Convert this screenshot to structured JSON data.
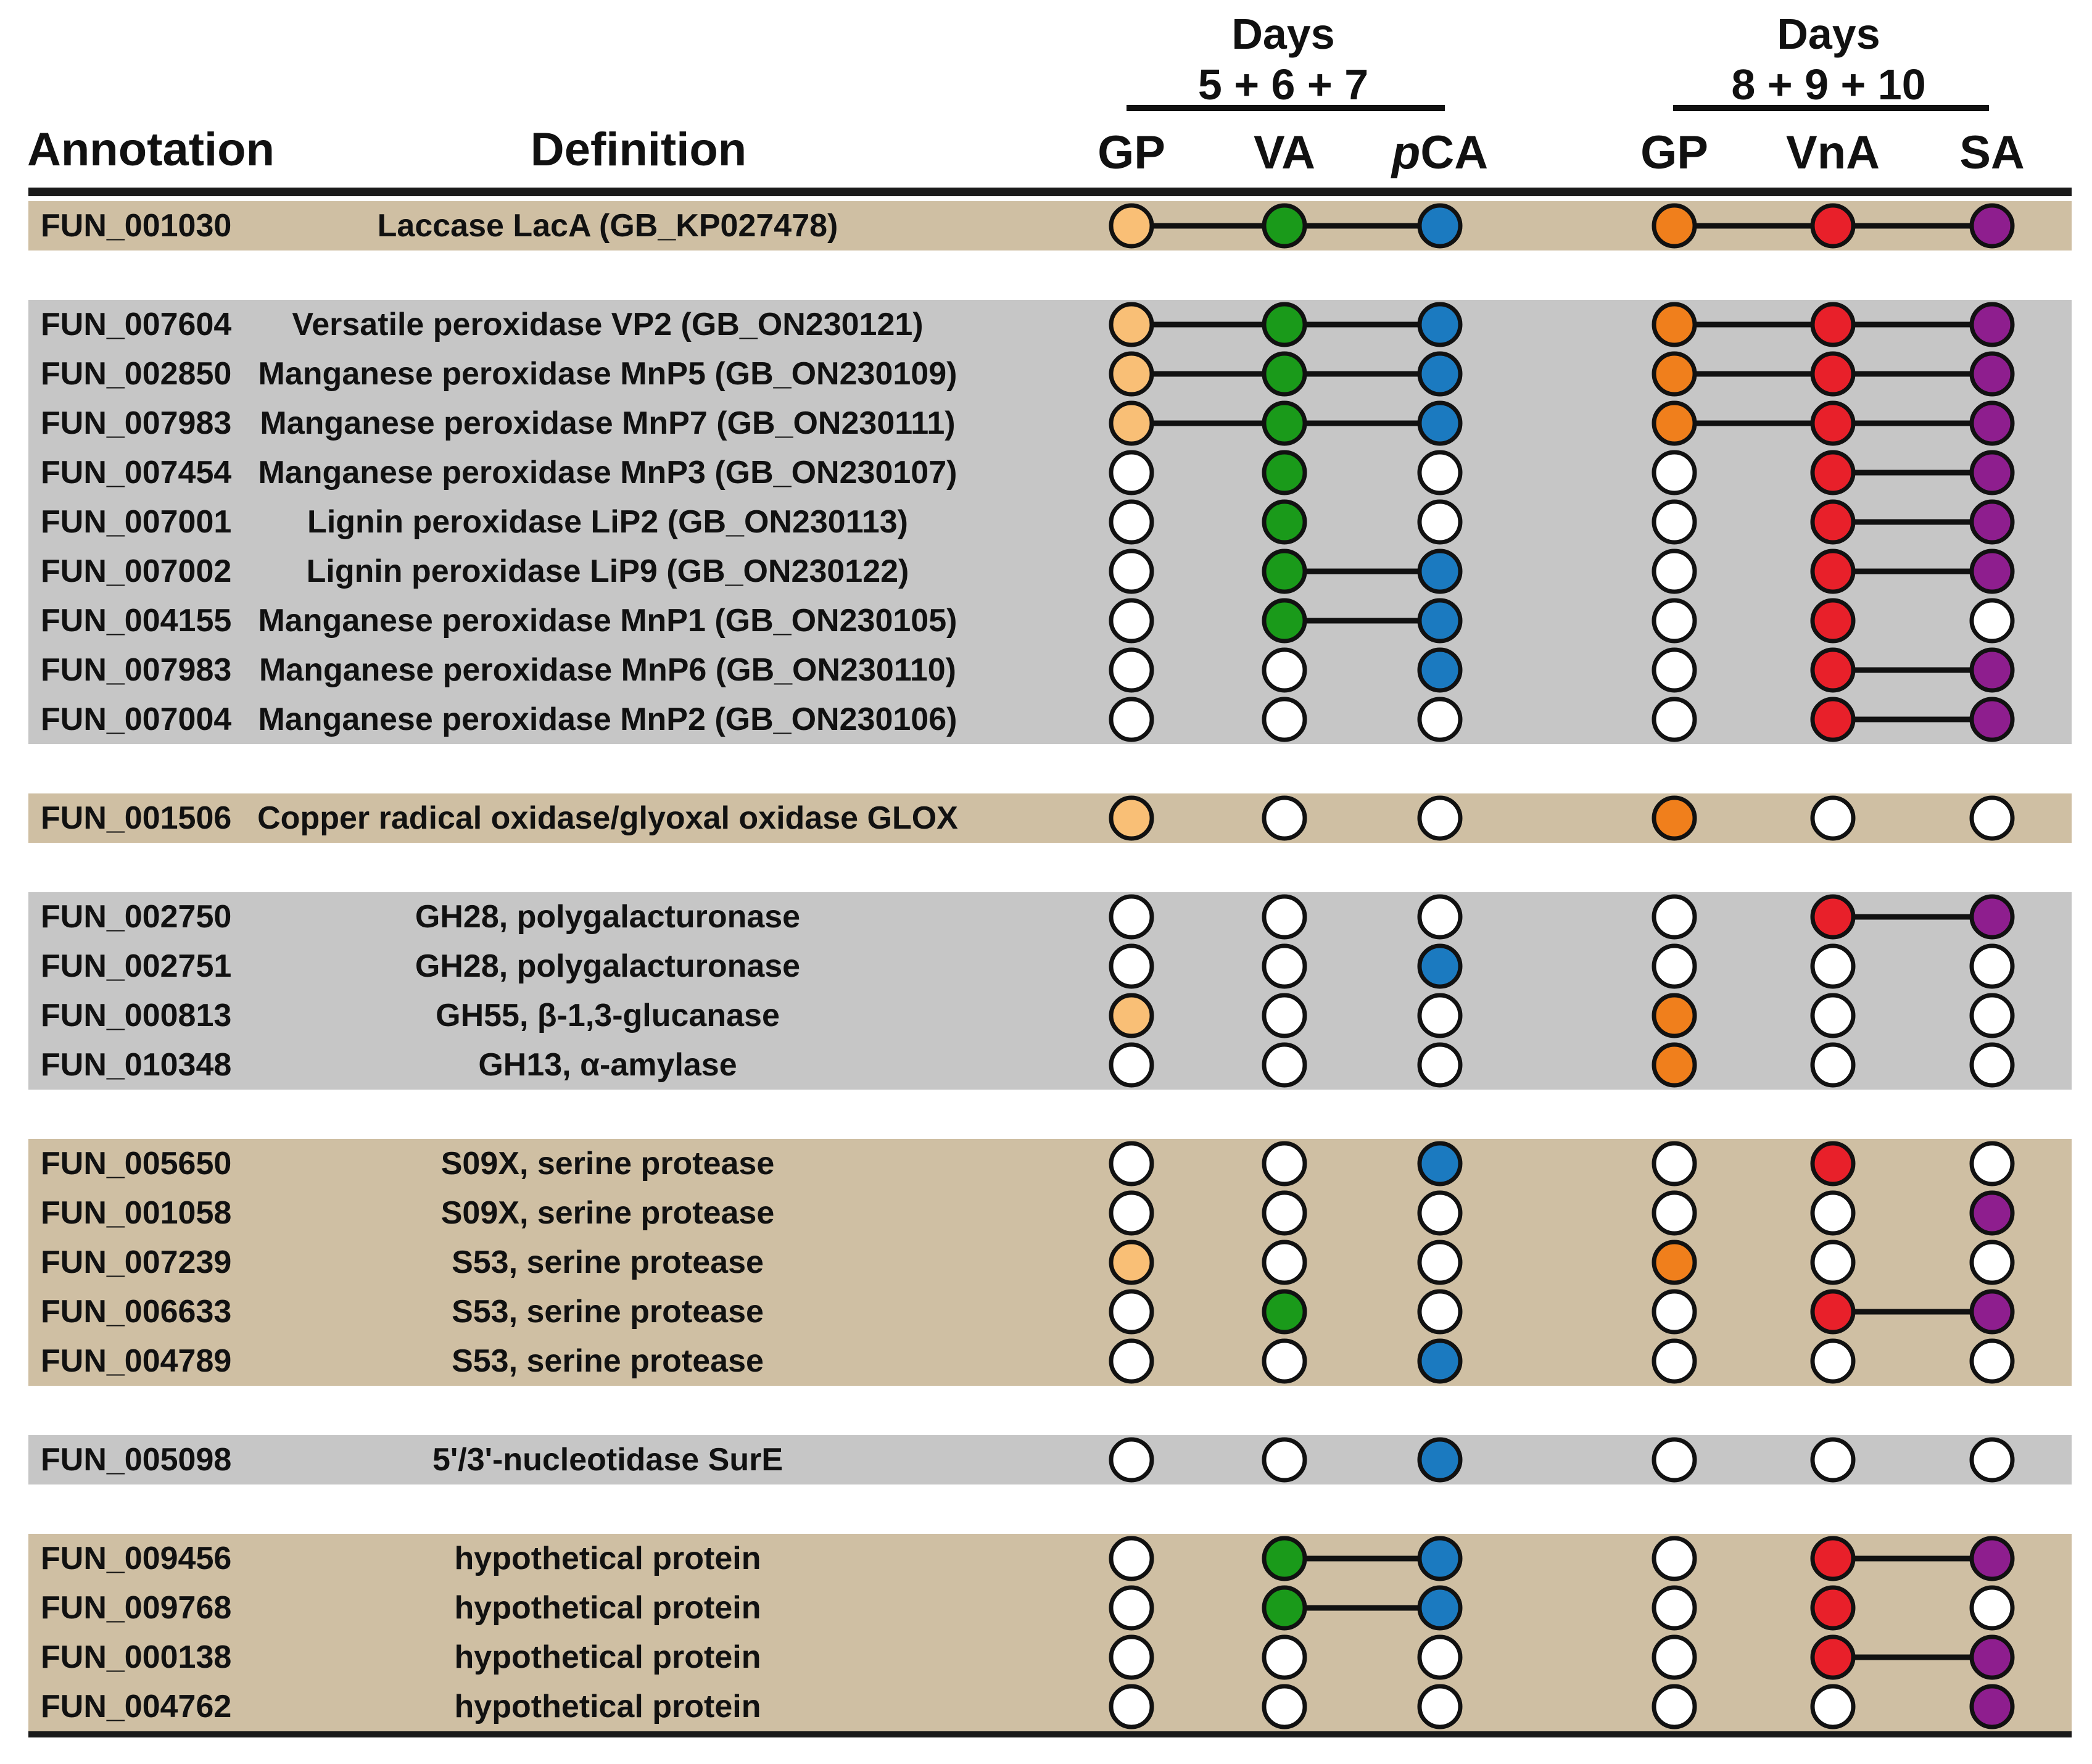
{
  "headers": {
    "annotation": "Annotation",
    "definition": "Definition",
    "group1_days": "Days",
    "group1_range": "5 + 6 + 7",
    "group2_days": "Days",
    "group2_range": "8 + 9 + 10"
  },
  "columns": [
    {
      "label": "GP",
      "italic_prefix": "",
      "group": 1
    },
    {
      "label": "VA",
      "italic_prefix": "",
      "group": 1
    },
    {
      "label": "CA",
      "italic_prefix": "p",
      "group": 1
    },
    {
      "label": "GP",
      "italic_prefix": "",
      "group": 2
    },
    {
      "label": "VnA",
      "italic_prefix": "",
      "group": 2
    },
    {
      "label": "SA",
      "italic_prefix": "",
      "group": 2
    }
  ],
  "colors": {
    "GP1": "#f9bf76",
    "VA": "#1a9a1a",
    "pCA": "#1b7ac0",
    "GP2": "#f07f1c",
    "VnA": "#e8202a",
    "SA": "#8e1e8e",
    "empty": "#ffffff",
    "band_tan": "#cfbfa3",
    "band_gray": "#c6c6c6"
  },
  "groups": [
    {
      "color": "tan",
      "rows": [
        {
          "annotation": "FUN_001030",
          "definition": "Laccase LacA (GB_KP027478)",
          "presence": [
            1,
            1,
            1,
            1,
            1,
            1
          ]
        }
      ]
    },
    {
      "color": "gray",
      "rows": [
        {
          "annotation": "FUN_007604",
          "definition": "Versatile peroxidase VP2 (GB_ON230121)",
          "presence": [
            1,
            1,
            1,
            1,
            1,
            1
          ]
        },
        {
          "annotation": "FUN_002850",
          "definition": "Manganese peroxidase MnP5 (GB_ON230109)",
          "presence": [
            1,
            1,
            1,
            1,
            1,
            1
          ]
        },
        {
          "annotation": "FUN_007983",
          "definition": "Manganese peroxidase MnP7 (GB_ON230111)",
          "presence": [
            1,
            1,
            1,
            1,
            1,
            1
          ]
        },
        {
          "annotation": "FUN_007454",
          "definition": "Manganese peroxidase MnP3 (GB_ON230107)",
          "presence": [
            0,
            1,
            0,
            0,
            1,
            1
          ]
        },
        {
          "annotation": "FUN_007001",
          "definition": "Lignin peroxidase LiP2 (GB_ON230113)",
          "presence": [
            0,
            1,
            0,
            0,
            1,
            1
          ]
        },
        {
          "annotation": "FUN_007002",
          "definition": "Lignin peroxidase LiP9 (GB_ON230122)",
          "presence": [
            0,
            1,
            1,
            0,
            1,
            1
          ]
        },
        {
          "annotation": "FUN_004155",
          "definition": "Manganese peroxidase MnP1 (GB_ON230105)",
          "presence": [
            0,
            1,
            1,
            0,
            1,
            0
          ]
        },
        {
          "annotation": "FUN_007983",
          "definition": "Manganese peroxidase MnP6 (GB_ON230110)",
          "presence": [
            0,
            0,
            1,
            0,
            1,
            1
          ]
        },
        {
          "annotation": "FUN_007004",
          "definition": "Manganese peroxidase MnP2 (GB_ON230106)",
          "presence": [
            0,
            0,
            0,
            0,
            1,
            1
          ]
        }
      ]
    },
    {
      "color": "tan",
      "rows": [
        {
          "annotation": "FUN_001506",
          "definition": "Copper radical oxidase/glyoxal oxidase GLOX",
          "presence": [
            1,
            0,
            0,
            1,
            0,
            0
          ]
        }
      ]
    },
    {
      "color": "gray",
      "rows": [
        {
          "annotation": "FUN_002750",
          "definition": "GH28, polygalacturonase",
          "presence": [
            0,
            0,
            0,
            0,
            1,
            1
          ]
        },
        {
          "annotation": "FUN_002751",
          "definition": "GH28, polygalacturonase",
          "presence": [
            0,
            0,
            1,
            0,
            0,
            0
          ]
        },
        {
          "annotation": "FUN_000813",
          "definition": "GH55, β-1,3-glucanase",
          "presence": [
            1,
            0,
            0,
            1,
            0,
            0
          ]
        },
        {
          "annotation": "FUN_010348",
          "definition": "GH13, α-amylase",
          "presence": [
            0,
            0,
            0,
            1,
            0,
            0
          ]
        }
      ]
    },
    {
      "color": "tan",
      "rows": [
        {
          "annotation": "FUN_005650",
          "definition": "S09X, serine protease",
          "presence": [
            0,
            0,
            1,
            0,
            1,
            0
          ]
        },
        {
          "annotation": "FUN_001058",
          "definition": "S09X, serine protease",
          "presence": [
            0,
            0,
            0,
            0,
            0,
            1
          ]
        },
        {
          "annotation": "FUN_007239",
          "definition": "S53, serine protease",
          "presence": [
            1,
            0,
            0,
            1,
            0,
            0
          ]
        },
        {
          "annotation": "FUN_006633",
          "definition": "S53, serine protease",
          "presence": [
            0,
            1,
            0,
            0,
            1,
            1
          ]
        },
        {
          "annotation": "FUN_004789",
          "definition": "S53, serine protease",
          "presence": [
            0,
            0,
            1,
            0,
            0,
            0
          ]
        }
      ]
    },
    {
      "color": "gray",
      "rows": [
        {
          "annotation": "FUN_005098",
          "definition": "5'/3'-nucleotidase SurE",
          "presence": [
            0,
            0,
            1,
            0,
            0,
            0
          ]
        }
      ]
    },
    {
      "color": "tan",
      "rows": [
        {
          "annotation": "FUN_009456",
          "definition": "hypothetical protein",
          "presence": [
            0,
            1,
            1,
            0,
            1,
            1
          ]
        },
        {
          "annotation": "FUN_009768",
          "definition": "hypothetical protein",
          "presence": [
            0,
            1,
            1,
            0,
            1,
            0
          ]
        },
        {
          "annotation": "FUN_000138",
          "definition": "hypothetical protein",
          "presence": [
            0,
            0,
            0,
            0,
            1,
            1
          ]
        },
        {
          "annotation": "FUN_004762",
          "definition": "hypothetical protein",
          "presence": [
            0,
            0,
            0,
            0,
            0,
            1
          ]
        }
      ]
    }
  ]
}
